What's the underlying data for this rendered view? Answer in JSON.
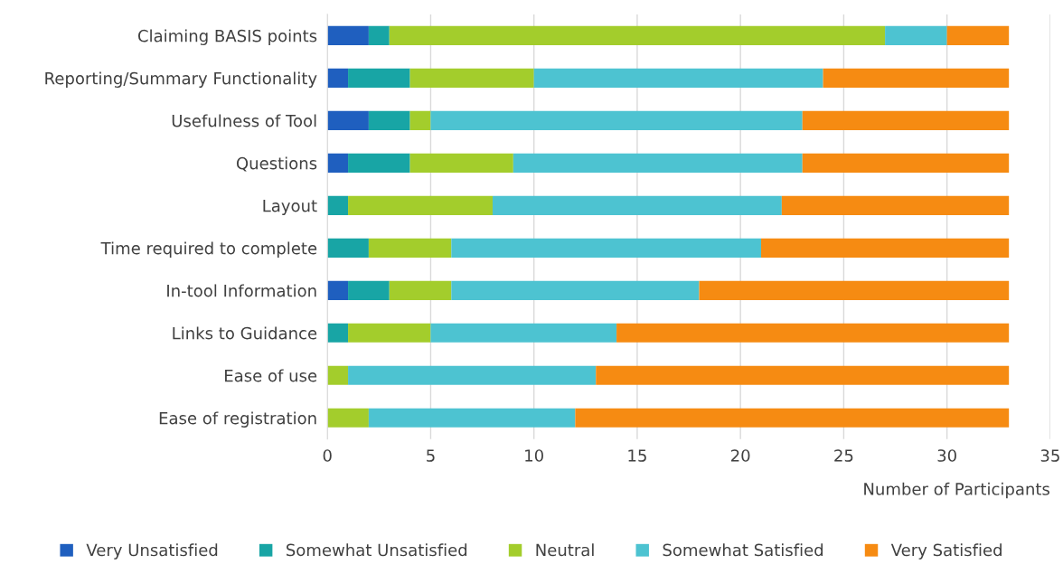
{
  "chart_data": {
    "type": "bar",
    "orientation": "horizontal",
    "stacked": true,
    "xlabel": "Number of Participants",
    "categories": [
      "Claiming BASIS points",
      "Reporting/Summary Functionality",
      "Usefulness of Tool",
      "Questions",
      "Layout",
      "Time required to complete",
      "In-tool Information",
      "Links to Guidance",
      "Ease of use",
      "Ease of registration"
    ],
    "series": [
      {
        "name": "Very Unsatisfied",
        "color": "#1f5fbf",
        "values": [
          2,
          1,
          2,
          1,
          0,
          0,
          1,
          0,
          0,
          0
        ]
      },
      {
        "name": "Somewhat Unsatisfied",
        "color": "#18a5a5",
        "values": [
          1,
          3,
          2,
          3,
          1,
          2,
          2,
          1,
          0,
          0
        ]
      },
      {
        "name": "Neutral",
        "color": "#a3cd2c",
        "values": [
          24,
          6,
          1,
          5,
          7,
          4,
          3,
          4,
          1,
          2
        ]
      },
      {
        "name": "Somewhat Satisfied",
        "color": "#4dc3d1",
        "values": [
          3,
          14,
          18,
          14,
          14,
          15,
          12,
          9,
          12,
          10
        ]
      },
      {
        "name": "Very Satisfied",
        "color": "#f68b12",
        "values": [
          3,
          9,
          10,
          10,
          11,
          12,
          15,
          19,
          20,
          21
        ]
      }
    ],
    "xlim": [
      0,
      35
    ],
    "xticks": [
      0,
      5,
      10,
      15,
      20,
      25,
      30,
      35
    ],
    "grid": "x",
    "legend": "bottom"
  }
}
